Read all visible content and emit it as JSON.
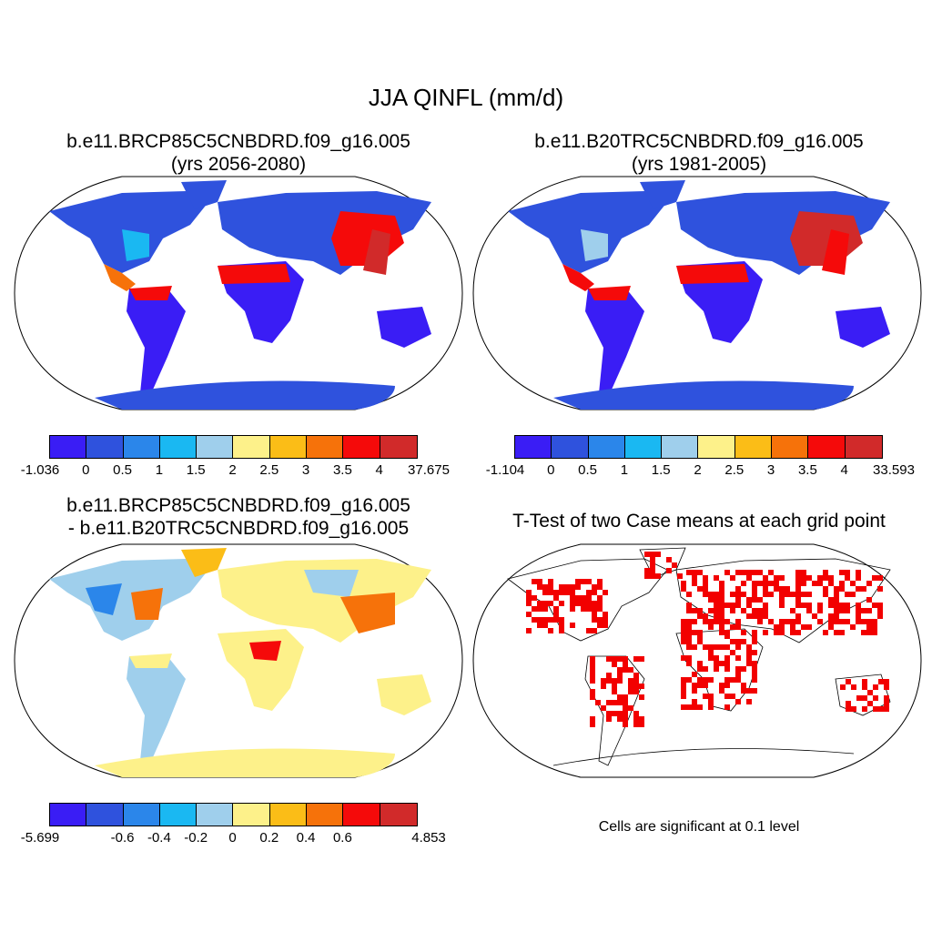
{
  "main_title": "JJA QINFL (mm/d)",
  "panels": [
    {
      "title_line1": "b.e11.BRCP85C5CNBDRD.f09_g16.005",
      "title_line2": "(yrs 2056-2080)"
    },
    {
      "title_line1": "b.e11.B20TRC5CNBDRD.f09_g16.005",
      "title_line2": "(yrs 1981-2005)"
    },
    {
      "title_line1": "b.e11.BRCP85C5CNBDRD.f09_g16.005",
      "title_line2": "- b.e11.B20TRC5CNBDRD.f09_g16.005"
    },
    {
      "title_line1": "T-Test of two Case means at each grid point",
      "title_line2": ""
    }
  ],
  "colors": [
    "#3a1df5",
    "#2f52dd",
    "#2b86ea",
    "#1ab8f2",
    "#9fcfec",
    "#fdf18a",
    "#fbbd17",
    "#f6720a",
    "#f50a0a",
    "#d12a2a"
  ],
  "significance_color": "#f20000",
  "colorbars": [
    {
      "labels": [
        "-1.036",
        "0",
        "0.5",
        "1",
        "1.5",
        "2",
        "2.5",
        "3",
        "3.5",
        "4",
        "37.675"
      ]
    },
    {
      "labels": [
        "-1.104",
        "0",
        "0.5",
        "1",
        "1.5",
        "2",
        "2.5",
        "3",
        "3.5",
        "4",
        "33.593"
      ]
    },
    {
      "labels": [
        "-5.699",
        "",
        "-0.6",
        "-0.4",
        "-0.2",
        "0",
        "0.2",
        "0.4",
        "0.6",
        "",
        "4.853"
      ]
    }
  ],
  "significance_note": "Cells are significant at 0.1 level"
}
